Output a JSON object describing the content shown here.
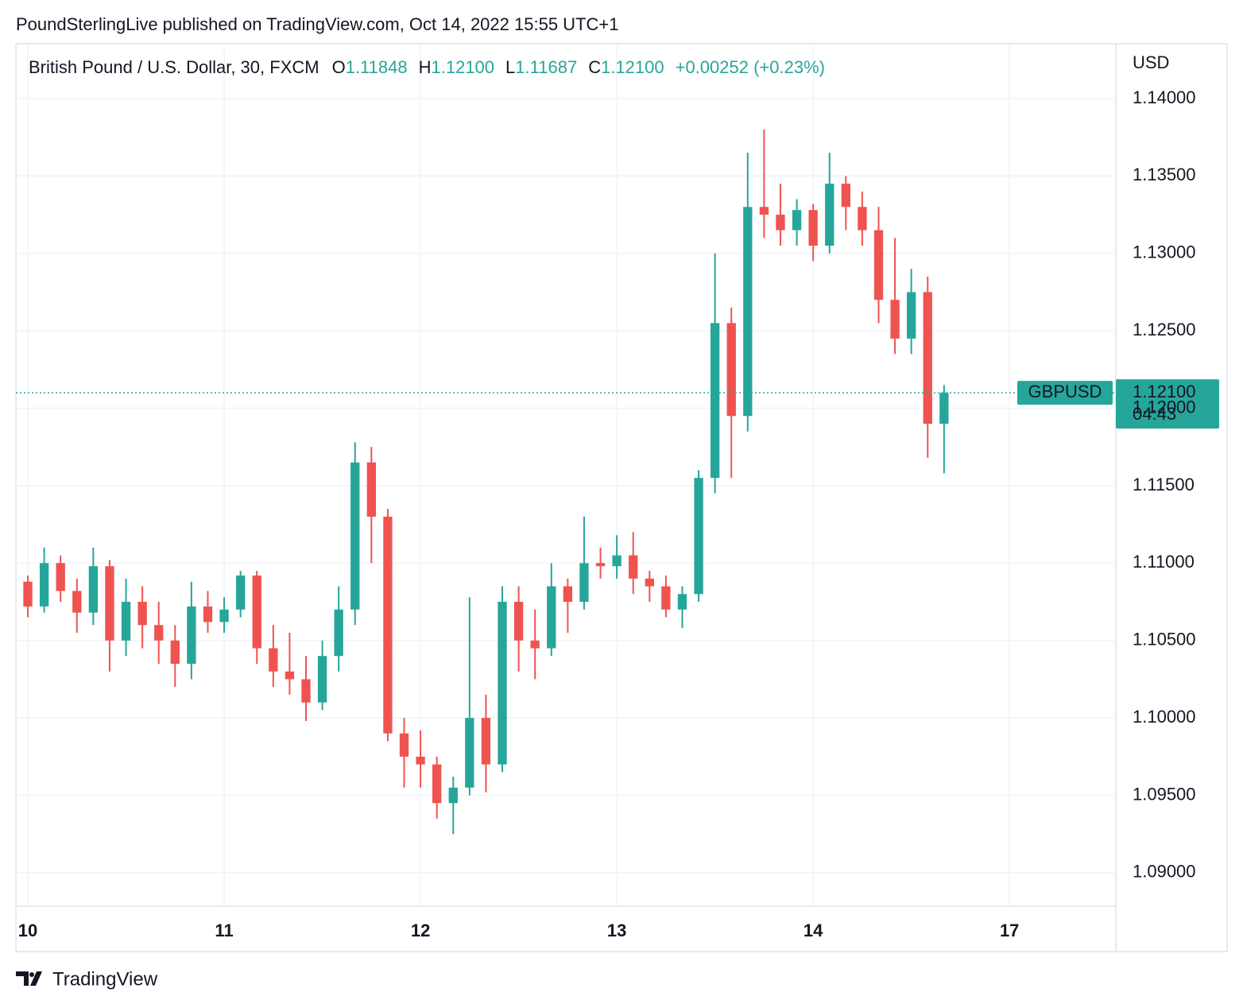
{
  "chart_data": {
    "type": "candlestick",
    "attribution": "PoundSterlingLive published on TradingView.com, Oct 14, 2022 15:55 UTC+1",
    "title": "British Pound / U.S. Dollar, 30, FXCM",
    "ohlc_header": [
      {
        "key": "O",
        "value": "1.11848"
      },
      {
        "key": "H",
        "value": "1.12100"
      },
      {
        "key": "L",
        "value": "1.11687"
      },
      {
        "key": "C",
        "value": "1.12100"
      }
    ],
    "change": "+0.00252 (+0.23%)",
    "y_unit": "USD",
    "symbol": "GBPUSD",
    "last_price": {
      "value": 1.121,
      "label": "1.12100"
    },
    "countdown": "04:43",
    "up_color": "#26a69a",
    "down_color": "#ef5350",
    "grid": true,
    "ylim": [
      1.08784,
      1.14354
    ],
    "yticks": [
      {
        "value": 1.09,
        "label": "1.09000"
      },
      {
        "value": 1.095,
        "label": "1.09500"
      },
      {
        "value": 1.1,
        "label": "1.10000"
      },
      {
        "value": 1.105,
        "label": "1.10500"
      },
      {
        "value": 1.11,
        "label": "1.11000"
      },
      {
        "value": 1.115,
        "label": "1.11500"
      },
      {
        "value": 1.12,
        "label": "1.12000"
      },
      {
        "value": 1.125,
        "label": "1.12500"
      },
      {
        "value": 1.13,
        "label": "1.13000"
      },
      {
        "value": 1.135,
        "label": "1.13500"
      },
      {
        "value": 1.14,
        "label": "1.14000"
      }
    ],
    "xlim": [
      -0.73,
      66.5
    ],
    "xticks": [
      {
        "value": 0,
        "label": "10"
      },
      {
        "value": 12,
        "label": "11"
      },
      {
        "value": 24,
        "label": "12"
      },
      {
        "value": 36,
        "label": "13"
      },
      {
        "value": 48,
        "label": "14"
      },
      {
        "value": 60,
        "label": "17"
      }
    ],
    "candles": {
      "open": [
        1.1088,
        1.1072,
        1.11,
        1.1082,
        1.1068,
        1.1098,
        1.105,
        1.1075,
        1.106,
        1.105,
        1.1035,
        1.1072,
        1.1062,
        1.107,
        1.1092,
        1.1045,
        1.103,
        1.1025,
        1.101,
        1.104,
        1.107,
        1.1165,
        1.113,
        1.099,
        1.0975,
        1.097,
        1.0945,
        1.0955,
        1.1,
        1.097,
        1.1075,
        1.105,
        1.1045,
        1.1085,
        1.1075,
        1.11,
        1.1098,
        1.1105,
        1.109,
        1.1085,
        1.107,
        1.108,
        1.1155,
        1.1255,
        1.1195,
        1.133,
        1.1325,
        1.1315,
        1.1328,
        1.1305,
        1.1345,
        1.133,
        1.1315,
        1.127,
        1.1245,
        1.1275,
        1.119
      ],
      "high": [
        1.1092,
        1.111,
        1.1105,
        1.109,
        1.111,
        1.1102,
        1.109,
        1.1085,
        1.1075,
        1.106,
        1.1088,
        1.1082,
        1.1078,
        1.1095,
        1.1095,
        1.106,
        1.1055,
        1.104,
        1.105,
        1.1085,
        1.1178,
        1.1175,
        1.1135,
        1.1,
        1.0992,
        1.0975,
        1.0962,
        1.1078,
        1.1015,
        1.1085,
        1.1085,
        1.107,
        1.11,
        1.109,
        1.113,
        1.111,
        1.1118,
        1.112,
        1.1095,
        1.1092,
        1.1085,
        1.116,
        1.13,
        1.1265,
        1.1365,
        1.138,
        1.1345,
        1.1335,
        1.1332,
        1.1365,
        1.135,
        1.134,
        1.133,
        1.131,
        1.129,
        1.1285,
        1.1215
      ],
      "low": [
        1.1065,
        1.1068,
        1.1075,
        1.1055,
        1.106,
        1.103,
        1.104,
        1.1045,
        1.1035,
        1.102,
        1.1025,
        1.1055,
        1.1055,
        1.1065,
        1.1035,
        1.102,
        1.1015,
        1.0998,
        1.1005,
        1.103,
        1.106,
        1.11,
        1.0985,
        1.0955,
        1.0955,
        1.0935,
        1.0925,
        1.095,
        1.0952,
        1.0965,
        1.103,
        1.1025,
        1.104,
        1.1055,
        1.107,
        1.109,
        1.109,
        1.108,
        1.1075,
        1.1065,
        1.1058,
        1.1075,
        1.1145,
        1.1155,
        1.1185,
        1.131,
        1.1305,
        1.1305,
        1.1295,
        1.13,
        1.1315,
        1.1305,
        1.1255,
        1.1235,
        1.1235,
        1.1168,
        1.1158
      ],
      "close": [
        1.1072,
        1.11,
        1.1082,
        1.1068,
        1.1098,
        1.105,
        1.1075,
        1.106,
        1.105,
        1.1035,
        1.1072,
        1.1062,
        1.107,
        1.1092,
        1.1045,
        1.103,
        1.1025,
        1.101,
        1.104,
        1.107,
        1.1165,
        1.113,
        1.099,
        1.0975,
        1.097,
        1.0945,
        1.0955,
        1.1,
        1.097,
        1.1075,
        1.105,
        1.1045,
        1.1085,
        1.1075,
        1.11,
        1.1098,
        1.1105,
        1.109,
        1.1085,
        1.107,
        1.108,
        1.1155,
        1.1255,
        1.1195,
        1.133,
        1.1325,
        1.1315,
        1.1328,
        1.1305,
        1.1345,
        1.133,
        1.1315,
        1.127,
        1.1245,
        1.1275,
        1.119,
        1.121
      ]
    },
    "brand": "TradingView"
  }
}
